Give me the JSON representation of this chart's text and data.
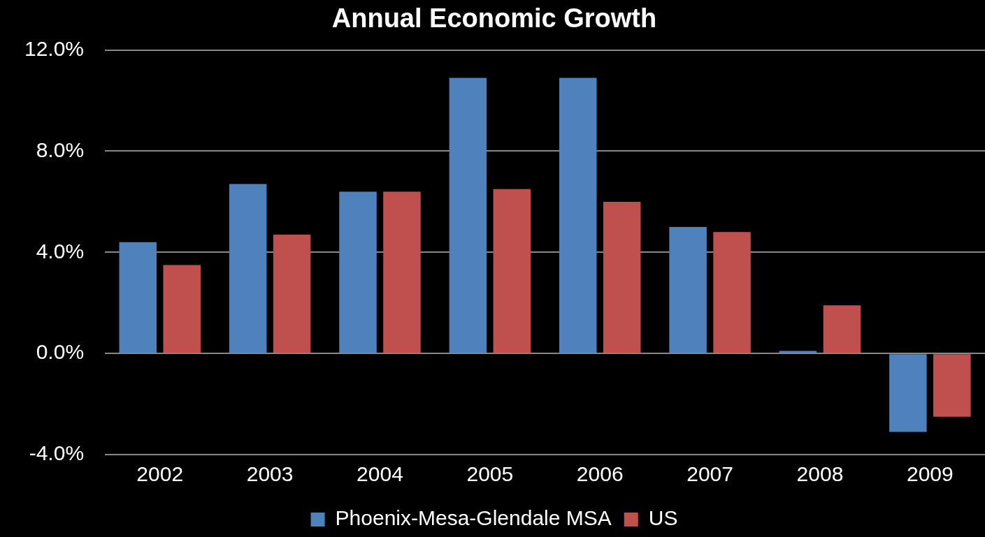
{
  "chart_data": {
    "type": "bar",
    "title": "Annual Economic Growth",
    "categories": [
      "2002",
      "2003",
      "2004",
      "2005",
      "2006",
      "2007",
      "2008",
      "2009"
    ],
    "series": [
      {
        "name": "Phoenix-Mesa-Glendale MSA",
        "color": "#4f81bd",
        "values": [
          4.4,
          6.7,
          6.4,
          10.9,
          10.9,
          5.0,
          0.1,
          -3.1
        ]
      },
      {
        "name": "US",
        "color": "#c0504d",
        "values": [
          3.5,
          4.7,
          6.4,
          6.5,
          6.0,
          4.8,
          1.9,
          -2.5
        ]
      }
    ],
    "ylim": [
      -4,
      12
    ],
    "yticks": [
      {
        "value": -4,
        "label": "-4.0%"
      },
      {
        "value": 0,
        "label": "0.0%"
      },
      {
        "value": 4,
        "label": "4.0%"
      },
      {
        "value": 8,
        "label": "8.0%"
      },
      {
        "value": 12,
        "label": "12.0%"
      }
    ],
    "grid": "y",
    "legend": "bottom"
  }
}
